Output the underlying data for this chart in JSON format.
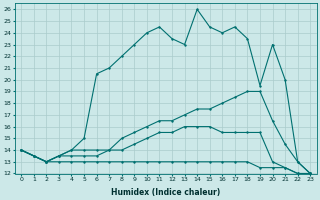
{
  "xlabel": "Humidex (Indice chaleur)",
  "xlim": [
    -0.5,
    23.5
  ],
  "ylim": [
    12,
    26.5
  ],
  "yticks": [
    12,
    13,
    14,
    15,
    16,
    17,
    18,
    19,
    20,
    21,
    22,
    23,
    24,
    25,
    26
  ],
  "xticks": [
    0,
    1,
    2,
    3,
    4,
    5,
    6,
    7,
    8,
    9,
    10,
    11,
    12,
    13,
    14,
    15,
    16,
    17,
    18,
    19,
    20,
    21,
    22,
    23
  ],
  "bg_color": "#cce8e8",
  "grid_color": "#aacccc",
  "line_color": "#007070",
  "line1_x": [
    0,
    1,
    2,
    3,
    4,
    5,
    6,
    7,
    8,
    9,
    10,
    11,
    12,
    13,
    14,
    15,
    16,
    17,
    18,
    19,
    20,
    21,
    22,
    23
  ],
  "line1_y": [
    14,
    13.5,
    13,
    13.5,
    14,
    15,
    20.5,
    21,
    22,
    23,
    24,
    24.5,
    23.5,
    23,
    26,
    24.5,
    24,
    24.5,
    23.5,
    19.5,
    23,
    20,
    13,
    12
  ],
  "line2_x": [
    0,
    1,
    2,
    3,
    4,
    5,
    6,
    7,
    8,
    9,
    10,
    11,
    12,
    13,
    14,
    15,
    16,
    17,
    18,
    19,
    20,
    21,
    22,
    23
  ],
  "line2_y": [
    14,
    13.5,
    13,
    13.5,
    14,
    14,
    14,
    14,
    15,
    15.5,
    16,
    16.5,
    16.5,
    17,
    17.5,
    17.5,
    18,
    18.5,
    19,
    19,
    16.5,
    14.5,
    13,
    12
  ],
  "line3_x": [
    0,
    1,
    2,
    3,
    4,
    5,
    6,
    7,
    8,
    9,
    10,
    11,
    12,
    13,
    14,
    15,
    16,
    17,
    18,
    19,
    20,
    21,
    22,
    23
  ],
  "line3_y": [
    14,
    13.5,
    13,
    13.5,
    13.5,
    13.5,
    13.5,
    14,
    14,
    14.5,
    15,
    15.5,
    15.5,
    16,
    16,
    16,
    15.5,
    15.5,
    15.5,
    15.5,
    13,
    12.5,
    12,
    12
  ],
  "line4_x": [
    0,
    1,
    2,
    3,
    4,
    5,
    6,
    7,
    8,
    9,
    10,
    11,
    12,
    13,
    14,
    15,
    16,
    17,
    18,
    19,
    20,
    21,
    22,
    23
  ],
  "line4_y": [
    14,
    13.5,
    13,
    13,
    13,
    13,
    13,
    13,
    13,
    13,
    13,
    13,
    13,
    13,
    13,
    13,
    13,
    13,
    13,
    12.5,
    12.5,
    12.5,
    12,
    12
  ]
}
